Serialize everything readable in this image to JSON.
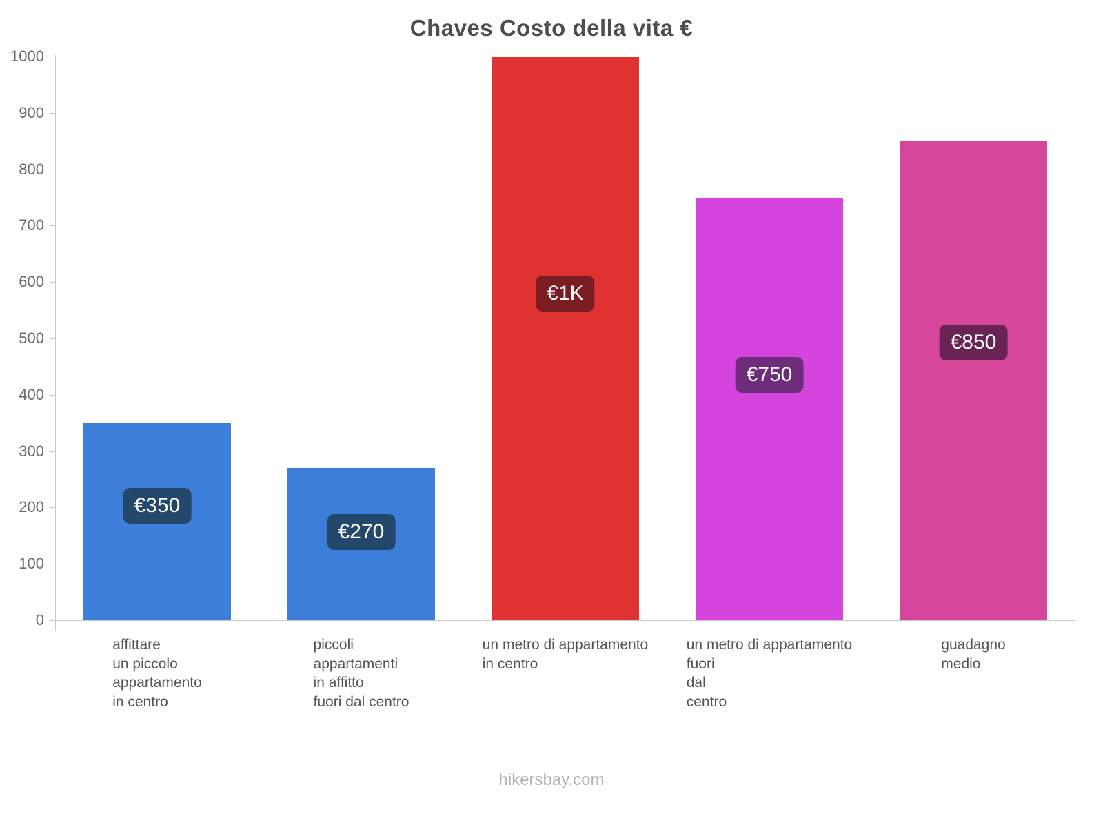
{
  "title": "Chaves Costo della vita €",
  "footer": "hikersbay.com",
  "chart_data": {
    "type": "bar",
    "title": "Chaves Costo della vita €",
    "currency": "€",
    "categories": [
      [
        "affittare",
        "un piccolo",
        "appartamento",
        "in centro"
      ],
      [
        "piccoli",
        "appartamenti",
        "in affitto",
        "fuori dal centro"
      ],
      [
        "un metro di appartamento",
        "in centro"
      ],
      [
        "un metro di appartamento",
        "fuori",
        "dal",
        "centro"
      ],
      [
        "guadagno",
        "medio"
      ]
    ],
    "values": [
      350,
      270,
      1000,
      750,
      850
    ],
    "value_labels": [
      "€350",
      "€270",
      "€1K",
      "€750",
      "€850"
    ],
    "bar_colors": [
      "#3d7edb",
      "#3d7edb",
      "#e03231",
      "#d544dd",
      "#d6479c"
    ],
    "label_bg_colors": [
      "#24486b",
      "#24486b",
      "#791d23",
      "#6d2d7a",
      "#692355"
    ],
    "xlabel": "",
    "ylabel": "",
    "ylim": [
      0,
      1000
    ],
    "yticks": [
      0,
      100,
      200,
      300,
      400,
      500,
      600,
      700,
      800,
      900,
      1000
    ],
    "grid": false,
    "legend": "none"
  }
}
